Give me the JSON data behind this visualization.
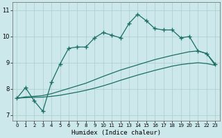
{
  "xlabel": "Humidex (Indice chaleur)",
  "bg_color": "#cce8ea",
  "grid_color": "#aacdd0",
  "line_color": "#1a6e65",
  "xlim": [
    -0.5,
    23.5
  ],
  "ylim": [
    6.8,
    11.3
  ],
  "yticks": [
    7,
    8,
    9,
    10,
    11
  ],
  "xticks": [
    0,
    1,
    2,
    3,
    4,
    5,
    6,
    7,
    8,
    9,
    10,
    11,
    12,
    13,
    14,
    15,
    16,
    17,
    18,
    19,
    20,
    21,
    22,
    23
  ],
  "line1_x": [
    0,
    1,
    2,
    3,
    4,
    5,
    6,
    7,
    8,
    9,
    10,
    11,
    12,
    13,
    14,
    15,
    16,
    17,
    18,
    19,
    20,
    21,
    22,
    23
  ],
  "line1_y": [
    7.65,
    8.05,
    7.55,
    7.15,
    8.25,
    8.95,
    9.55,
    9.6,
    9.6,
    9.95,
    10.15,
    10.05,
    9.95,
    10.5,
    10.85,
    10.6,
    10.3,
    10.25,
    10.25,
    9.95,
    10.0,
    9.45,
    9.35,
    8.95
  ],
  "line2_x": [
    0,
    1,
    2,
    3,
    4,
    5,
    6,
    7,
    8,
    9,
    10,
    11,
    12,
    13,
    14,
    15,
    16,
    17,
    18,
    19,
    20,
    21,
    22,
    23
  ],
  "line2_y": [
    7.65,
    7.7,
    7.72,
    7.75,
    7.82,
    7.92,
    8.02,
    8.12,
    8.22,
    8.35,
    8.48,
    8.6,
    8.72,
    8.82,
    8.92,
    9.02,
    9.12,
    9.2,
    9.28,
    9.35,
    9.42,
    9.45,
    9.35,
    8.9
  ],
  "line3_x": [
    0,
    1,
    2,
    3,
    4,
    5,
    6,
    7,
    8,
    9,
    10,
    11,
    12,
    13,
    14,
    15,
    16,
    17,
    18,
    19,
    20,
    21,
    22,
    23
  ],
  "line3_y": [
    7.65,
    7.67,
    7.68,
    7.69,
    7.72,
    7.76,
    7.82,
    7.88,
    7.95,
    8.03,
    8.12,
    8.22,
    8.33,
    8.43,
    8.53,
    8.62,
    8.71,
    8.79,
    8.87,
    8.93,
    8.97,
    9.0,
    8.97,
    8.9
  ]
}
